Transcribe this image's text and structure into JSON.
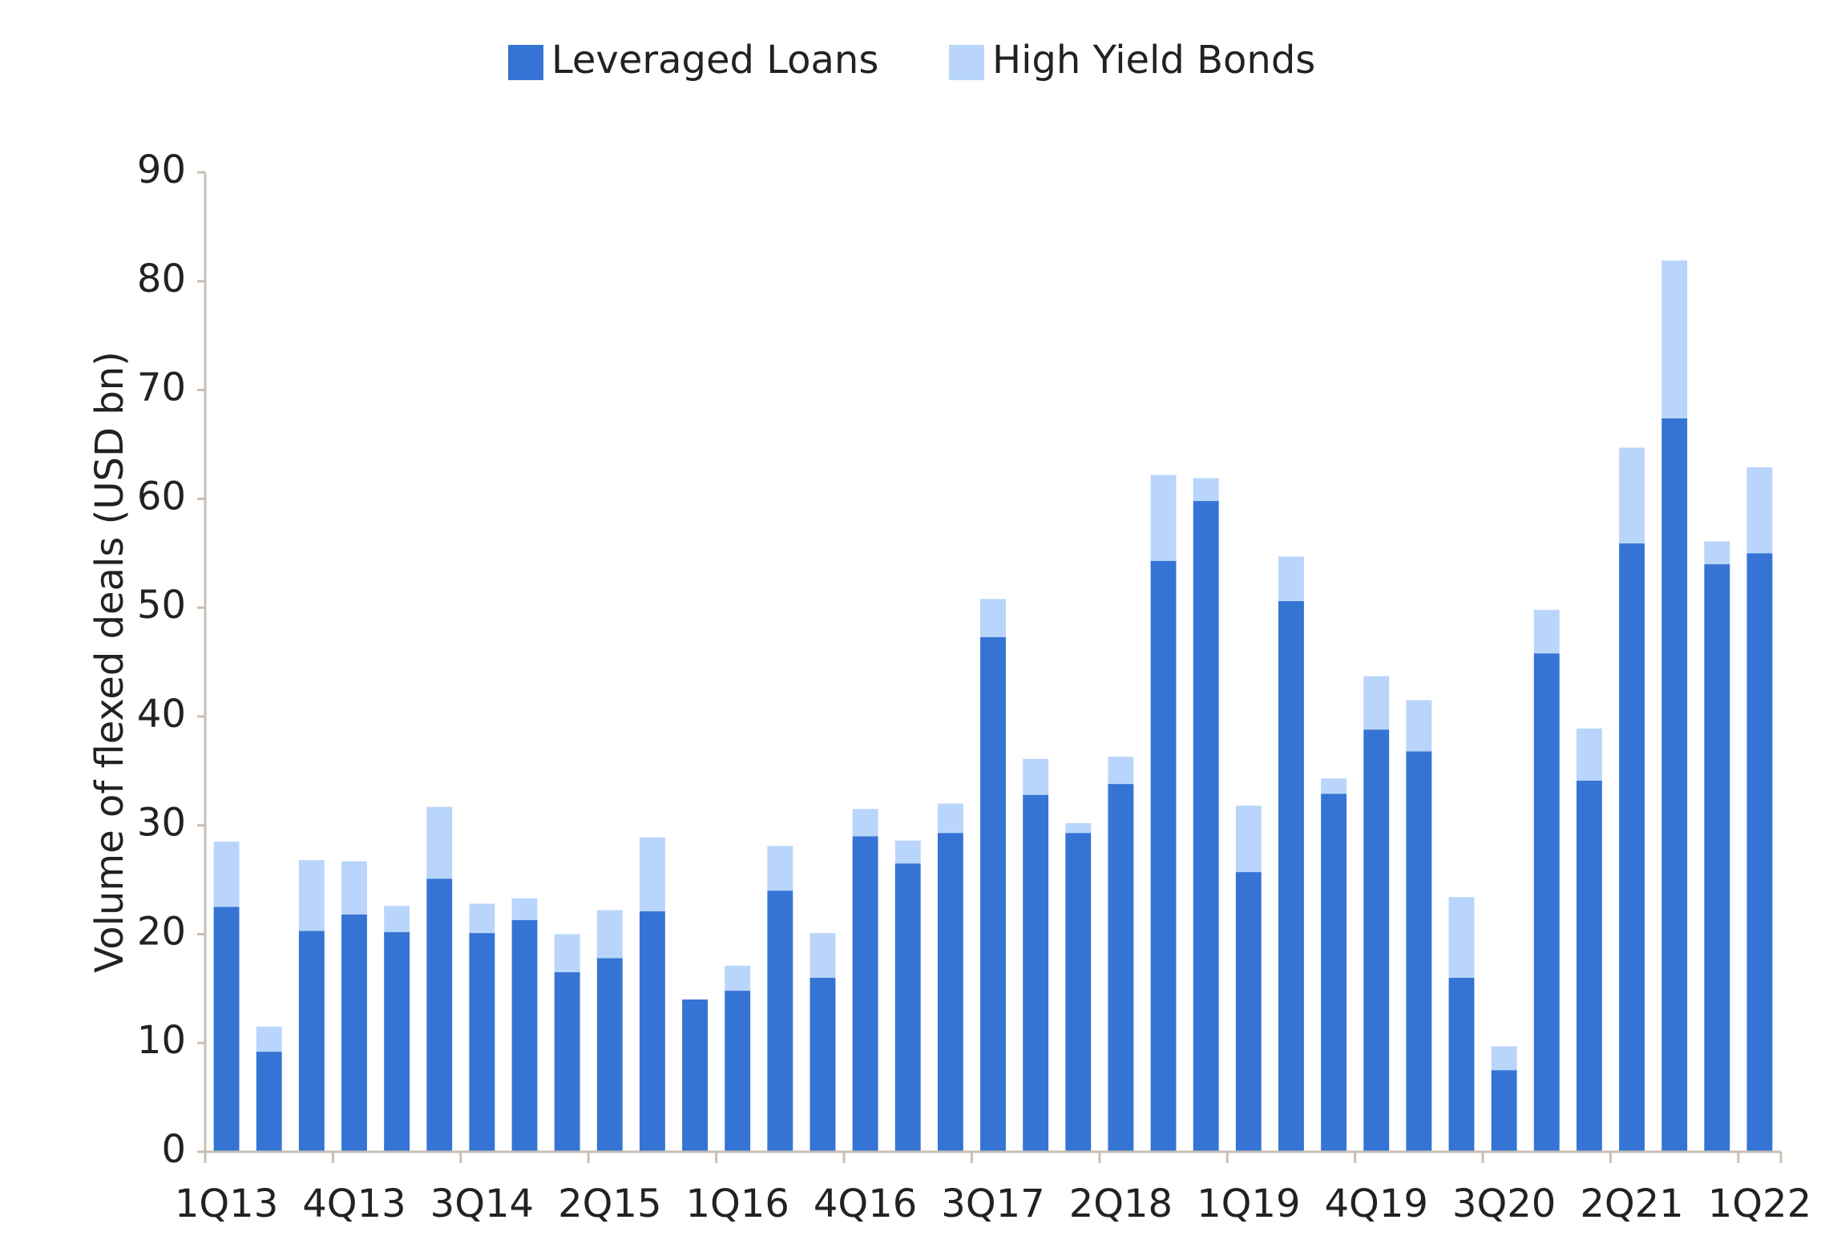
{
  "chart_data": {
    "type": "stacked_bar",
    "y_label": "Volume of flexed deals (USD bn)",
    "categories": [
      "1Q13",
      null,
      null,
      "4Q13",
      null,
      null,
      "3Q14",
      null,
      null,
      "2Q15",
      null,
      null,
      "1Q16",
      null,
      null,
      "4Q16",
      null,
      null,
      "3Q17",
      null,
      null,
      "2Q18",
      null,
      null,
      "1Q19",
      null,
      null,
      "4Q19",
      null,
      null,
      "3Q20",
      null,
      null,
      "2Q21",
      null,
      null,
      "1Q22"
    ],
    "series": [
      {
        "name": "Leveraged Loans",
        "color": "#3574d4",
        "values": [
          22.5,
          9.2,
          20.3,
          21.8,
          20.2,
          25.1,
          20.1,
          21.3,
          16.5,
          17.8,
          22.1,
          14,
          14.8,
          24,
          16,
          29,
          26.5,
          29.3,
          47.3,
          32.8,
          29.3,
          33.8,
          54.3,
          59.8,
          25.7,
          50.6,
          32.9,
          38.8,
          36.8,
          16,
          7.5,
          45.8,
          34.1,
          55.9,
          67.4,
          54,
          55
        ]
      },
      {
        "name": "High Yield Bonds",
        "color": "#b9d5fb",
        "values": [
          6,
          2.3,
          6.5,
          4.9,
          2.4,
          6.6,
          2.7,
          2,
          3.5,
          4.4,
          6.8,
          0,
          2.3,
          4.1,
          4.1,
          2.5,
          2.1,
          2.7,
          3.5,
          3.3,
          0.9,
          2.5,
          7.9,
          2.1,
          6.1,
          4.1,
          1.4,
          4.9,
          4.7,
          7.4,
          2.2,
          4,
          4.8,
          8.8,
          14.5,
          2.1,
          7.9
        ]
      }
    ],
    "ylim": [
      0,
      90
    ],
    "yticks": [
      0,
      10,
      20,
      30,
      40,
      50,
      60,
      70,
      80,
      90
    ],
    "legend": "top"
  }
}
